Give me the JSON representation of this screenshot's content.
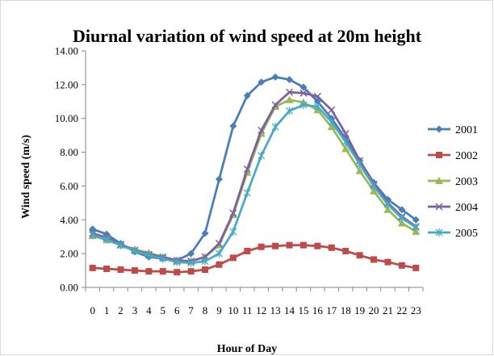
{
  "chart_data": {
    "type": "line",
    "title": "Diurnal variation of wind speed at 20m height",
    "xlabel": "Hour of Day",
    "ylabel": "Wind speed (m/s)",
    "ylim": [
      0,
      14
    ],
    "y_ticks": [
      "0.00",
      "2.00",
      "4.00",
      "6.00",
      "8.00",
      "10.00",
      "12.00",
      "14.00"
    ],
    "categories": [
      "0",
      "1",
      "2",
      "3",
      "4",
      "5",
      "6",
      "7",
      "8",
      "9",
      "10",
      "11",
      "12",
      "13",
      "14",
      "15",
      "16",
      "17",
      "18",
      "19",
      "20",
      "21",
      "22",
      "23"
    ],
    "grid": false,
    "legend_position": "right",
    "series": [
      {
        "name": "2001",
        "color": "#4a7ebb",
        "marker": "diamond",
        "values": [
          3.45,
          3.15,
          2.6,
          2.1,
          1.8,
          1.7,
          1.6,
          2.0,
          3.2,
          6.4,
          9.55,
          11.35,
          12.15,
          12.45,
          12.3,
          11.85,
          11.0,
          10.0,
          8.8,
          7.5,
          6.2,
          5.2,
          4.6,
          4.0
        ]
      },
      {
        "name": "2002",
        "color": "#be4b48",
        "marker": "square",
        "values": [
          1.15,
          1.1,
          1.05,
          1.0,
          0.95,
          0.95,
          0.9,
          0.95,
          1.05,
          1.35,
          1.75,
          2.15,
          2.4,
          2.45,
          2.5,
          2.5,
          2.45,
          2.35,
          2.15,
          1.9,
          1.65,
          1.5,
          1.3,
          1.15
        ]
      },
      {
        "name": "2003",
        "color": "#98b954",
        "marker": "triangle",
        "values": [
          3.05,
          2.8,
          2.5,
          2.25,
          2.05,
          1.8,
          1.55,
          1.55,
          1.8,
          2.5,
          4.3,
          6.8,
          9.1,
          10.7,
          11.1,
          10.95,
          10.5,
          9.5,
          8.2,
          6.9,
          5.7,
          4.6,
          3.8,
          3.3
        ]
      },
      {
        "name": "2004",
        "color": "#7d60a0",
        "marker": "x",
        "values": [
          3.2,
          2.95,
          2.55,
          2.2,
          1.95,
          1.8,
          1.6,
          1.55,
          1.8,
          2.6,
          4.4,
          7.0,
          9.3,
          10.8,
          11.55,
          11.5,
          11.3,
          10.5,
          9.1,
          7.5,
          6.1,
          5.0,
          4.2,
          3.6
        ]
      },
      {
        "name": "2005",
        "color": "#46aac5",
        "marker": "asterisk",
        "values": [
          3.1,
          2.85,
          2.5,
          2.15,
          1.9,
          1.7,
          1.5,
          1.45,
          1.55,
          2.0,
          3.3,
          5.6,
          7.8,
          9.5,
          10.45,
          10.8,
          10.7,
          9.8,
          8.6,
          7.3,
          6.0,
          4.9,
          4.1,
          3.55
        ]
      }
    ]
  }
}
